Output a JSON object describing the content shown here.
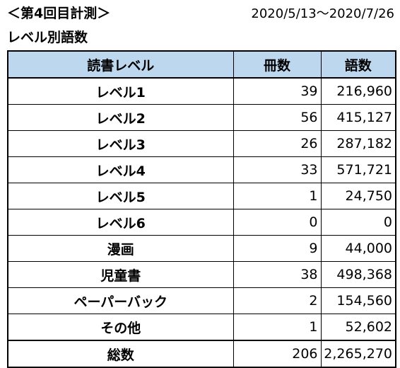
{
  "header": {
    "measure_title": "＜第4回目計測＞",
    "period": "2020/5/13〜2020/7/26"
  },
  "subtitle": "レベル別語数",
  "table": {
    "columns": [
      "読書レベル",
      "冊数",
      "語数"
    ],
    "rows": [
      {
        "level": "レベル1",
        "books": "39",
        "words": "216,960"
      },
      {
        "level": "レベル2",
        "books": "56",
        "words": "415,127"
      },
      {
        "level": "レベル3",
        "books": "26",
        "words": "287,182"
      },
      {
        "level": "レベル4",
        "books": "33",
        "words": "571,721"
      },
      {
        "level": "レベル5",
        "books": "1",
        "words": "24,750"
      },
      {
        "level": "レベル6",
        "books": "0",
        "words": "0"
      },
      {
        "level": "漫画",
        "books": "9",
        "words": "44,000"
      },
      {
        "level": "児童書",
        "books": "38",
        "words": "498,368"
      },
      {
        "level": "ペーパーバック",
        "books": "2",
        "words": "154,560"
      },
      {
        "level": "その他",
        "books": "1",
        "words": "52,602"
      }
    ],
    "total": {
      "level": "総数",
      "books": "206",
      "words": "2,265,270"
    }
  },
  "colors": {
    "header_fill": "#bdd7ee",
    "border": "#000000",
    "text": "#000000"
  }
}
